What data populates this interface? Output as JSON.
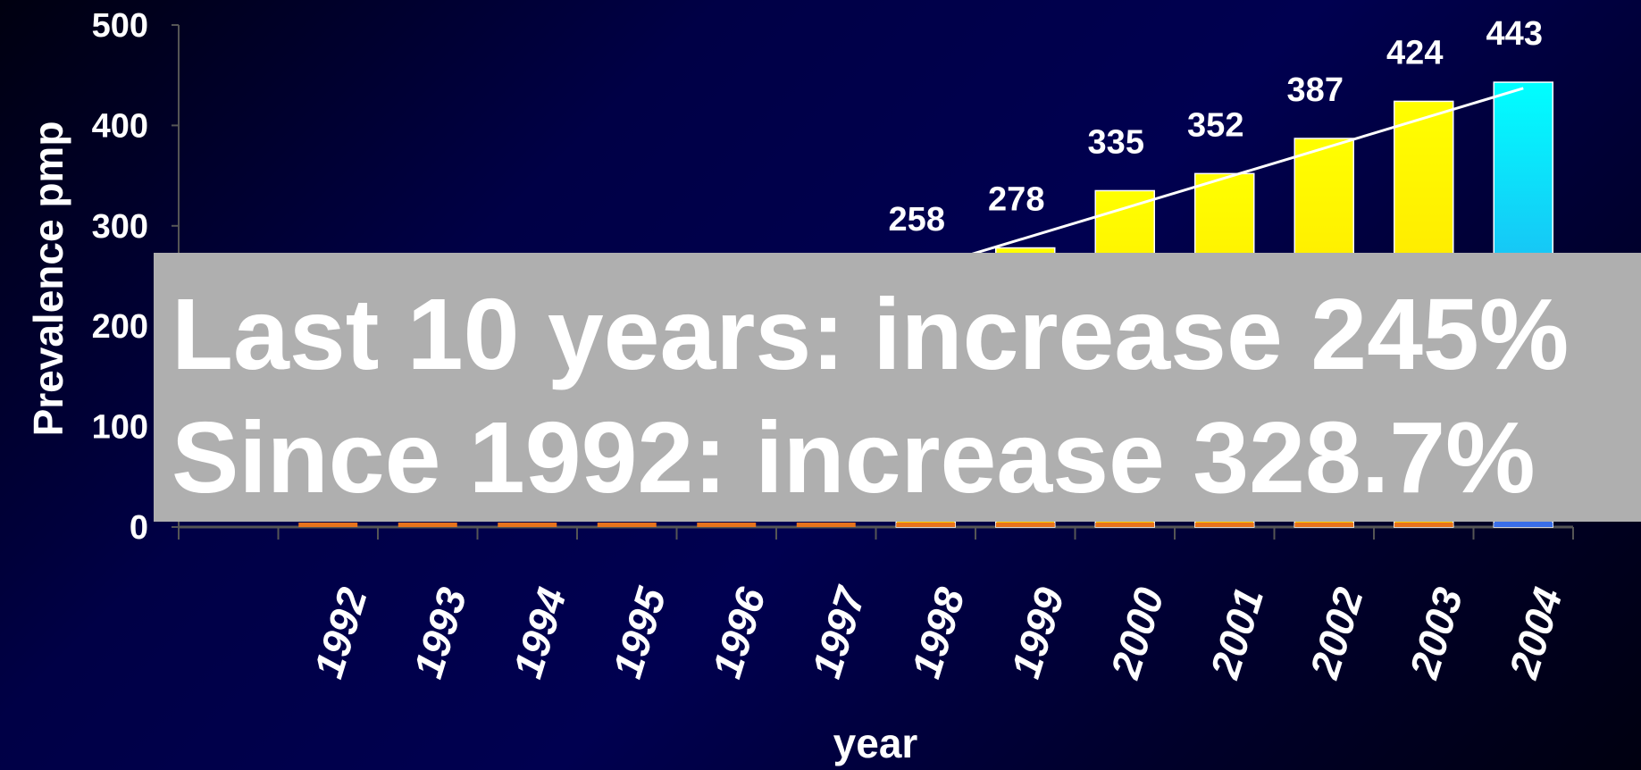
{
  "chart_data": {
    "type": "bar",
    "categories": [
      "1992",
      "1993",
      "1994",
      "1995",
      "1996",
      "1997",
      "1998",
      "1999",
      "2000",
      "2001",
      "2002",
      "2003",
      "2004"
    ],
    "values": [
      null,
      null,
      null,
      null,
      null,
      null,
      258,
      278,
      335,
      352,
      387,
      424,
      443
    ],
    "data_labels": [
      "",
      "",
      "",
      "",
      "",
      "",
      "258",
      "278",
      "335",
      "352",
      "387",
      "424",
      "443"
    ],
    "xlabel": "year",
    "ylabel": "Prevalence pmp",
    "ylim": [
      0,
      500
    ],
    "yticks": [
      "0",
      "100",
      "200",
      "300",
      "400",
      "500"
    ],
    "trendline": {
      "from_category": "1998",
      "from_value": 258,
      "to_category": "2004",
      "to_value": 437
    },
    "colors": {
      "bar_top": "#ffff00",
      "bar_bottom": "#ffcc00",
      "highlight_top": "#00ffff",
      "highlight_bottom": "#3a6ee8",
      "base_band": "#e8731c",
      "bar_border": "#ffffff",
      "axis": "#555555"
    },
    "highlight_category": "2004",
    "grid": false
  },
  "overlay": {
    "line1": "Last 10 years: increase 245%",
    "line2": "Since 1992: increase 328.7%"
  }
}
